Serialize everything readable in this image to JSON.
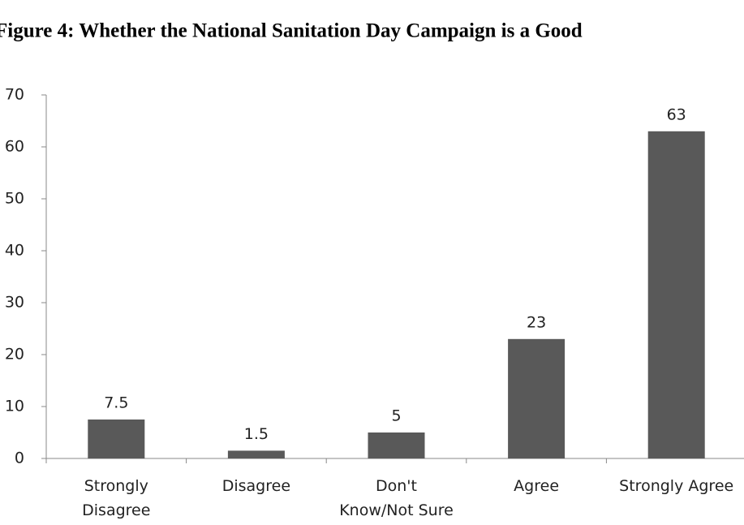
{
  "chart_data": {
    "type": "bar",
    "title": "Figure 4: Whether the National Sanitation Day Campaign is a Good",
    "categories": [
      "Strongly\nDisagree",
      "Disagree",
      "Don't\nKnow/Not Sure",
      "Agree",
      "Strongly Agree"
    ],
    "values": [
      7.5,
      1.5,
      5,
      23,
      63
    ],
    "color": "#595959",
    "ylim": [
      0,
      70
    ],
    "yticks": [
      0,
      10,
      20,
      30,
      40,
      50,
      60,
      70
    ],
    "grid": false
  }
}
